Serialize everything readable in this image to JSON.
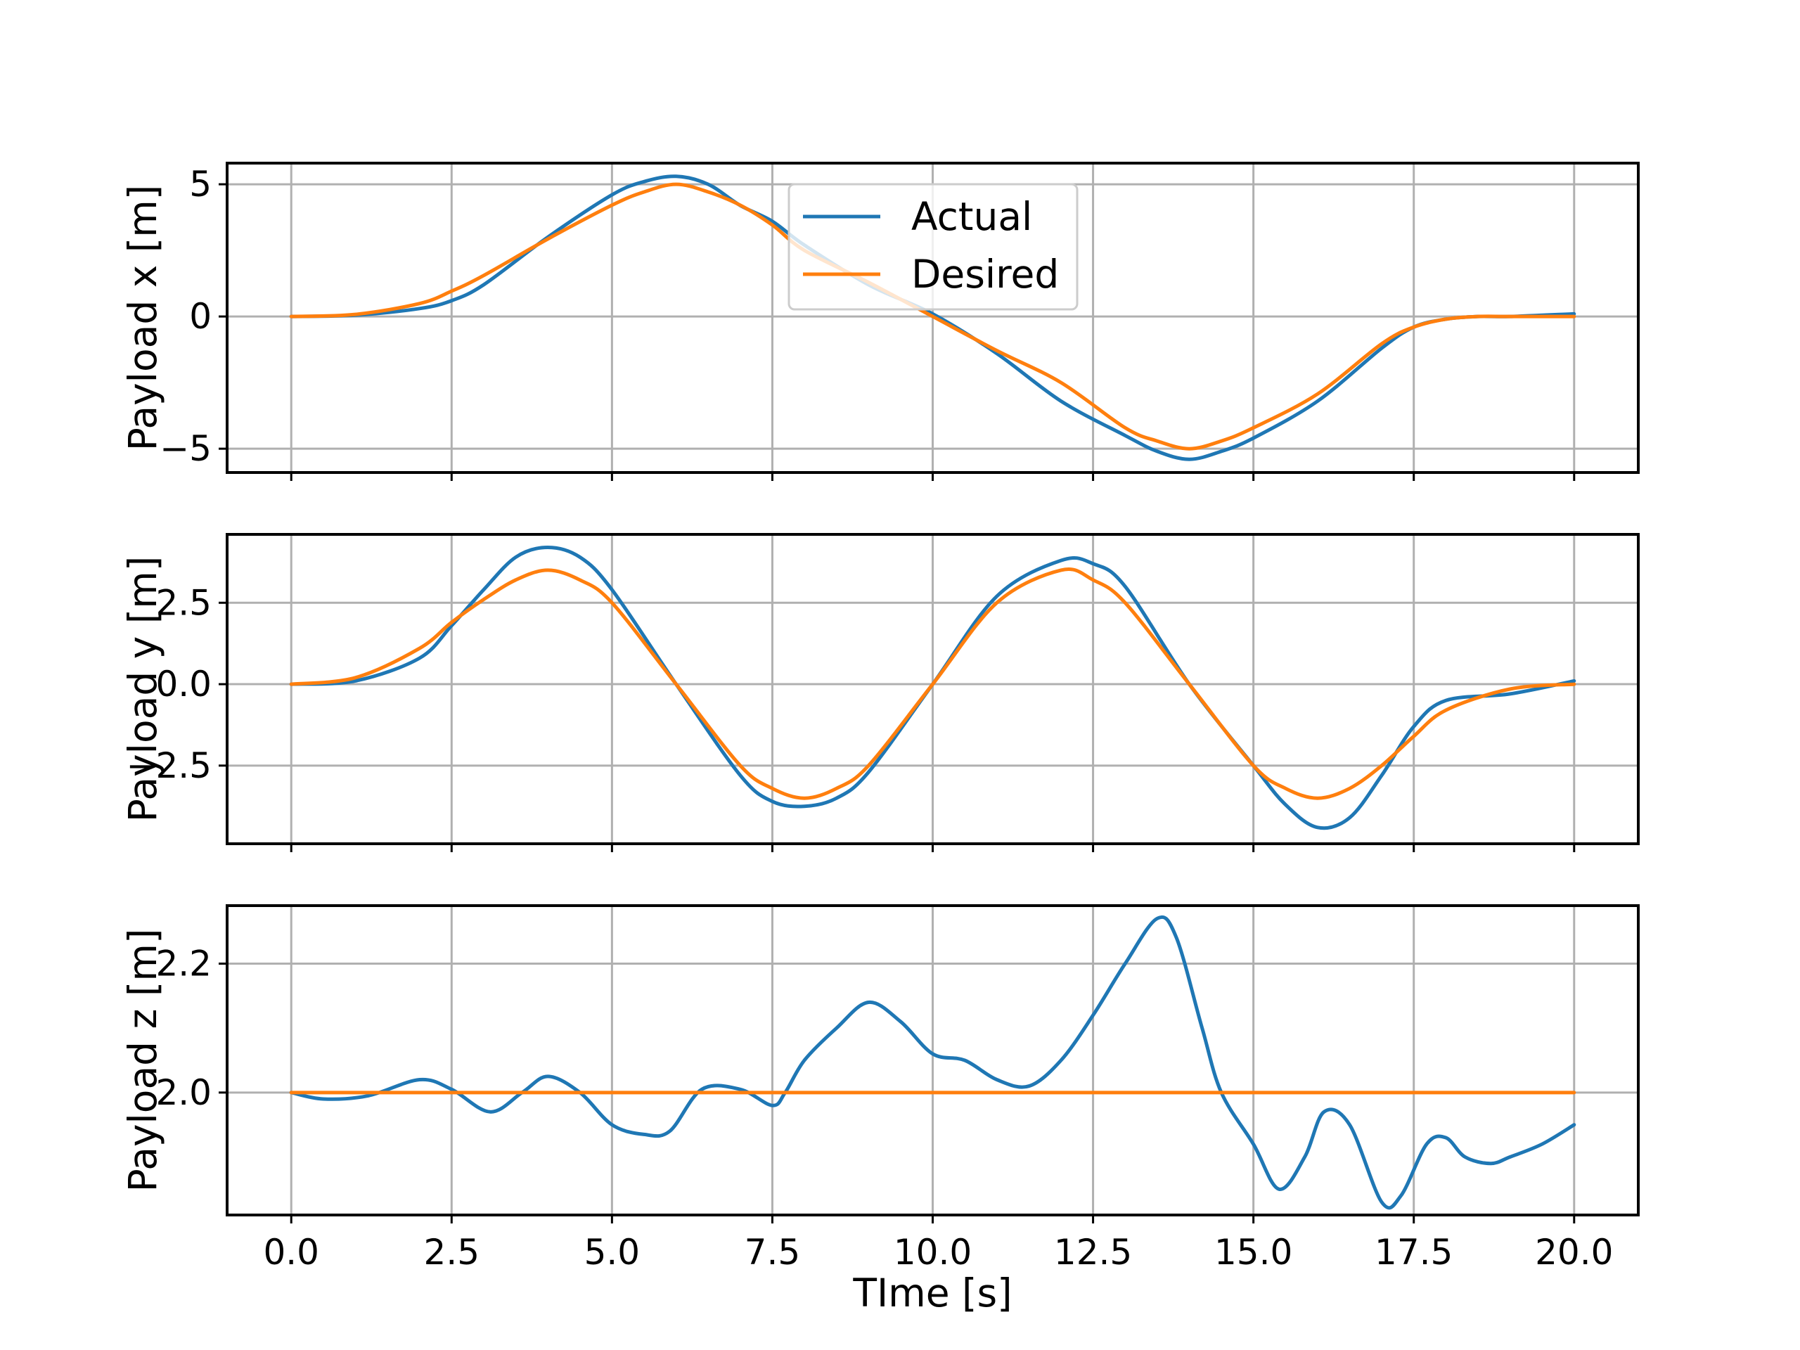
{
  "colors": {
    "actual": "#1f77b4",
    "desired": "#ff7f0e",
    "grid": "#b0b0b0",
    "frame": "#000000",
    "background": "#ffffff"
  },
  "legend": {
    "placement": "top-center, over first subplot",
    "entries": [
      "Actual",
      "Desired"
    ]
  },
  "chart_data": [
    {
      "type": "line",
      "ylabel": "Payload x [m]",
      "xlabel": "",
      "xlim": [
        -1,
        21
      ],
      "ylim": [
        -5.9,
        5.8
      ],
      "xticks": [
        0,
        2.5,
        5,
        7.5,
        10,
        12.5,
        15,
        17.5,
        20
      ],
      "xtick_labels_visible": false,
      "yticks": [
        5,
        0,
        -5
      ],
      "ytick_labels": [
        "5",
        "0",
        "−5"
      ],
      "grid": true,
      "series": [
        {
          "name": "Actual",
          "x": [
            0,
            1,
            2,
            2.5,
            3,
            4,
            5,
            5.5,
            6,
            6.5,
            7,
            7.5,
            8,
            9,
            10,
            11,
            12,
            13,
            13.5,
            14,
            14.5,
            15,
            16,
            17,
            17.5,
            18,
            18.5,
            19,
            20
          ],
          "y": [
            0,
            0.05,
            0.3,
            0.6,
            1.2,
            3.0,
            4.6,
            5.1,
            5.3,
            5.0,
            4.2,
            3.6,
            2.7,
            1.2,
            0.1,
            -1.4,
            -3.2,
            -4.5,
            -5.1,
            -5.4,
            -5.1,
            -4.6,
            -3.2,
            -1.2,
            -0.4,
            -0.1,
            0.0,
            0.0,
            0.1
          ]
        },
        {
          "name": "Desired",
          "x": [
            0,
            1,
            2,
            2.5,
            3,
            4,
            5,
            5.5,
            6,
            6.5,
            7,
            7.5,
            8,
            9,
            10,
            11,
            12,
            13,
            13.5,
            14,
            14.5,
            15,
            16,
            17,
            17.5,
            18,
            18.5,
            19,
            20
          ],
          "y": [
            0,
            0.08,
            0.49,
            0.96,
            1.55,
            2.93,
            4.21,
            4.71,
            5.0,
            4.71,
            4.21,
            3.46,
            2.5,
            1.29,
            0,
            -1.29,
            -2.5,
            -4.21,
            -4.71,
            -5.0,
            -4.71,
            -4.21,
            -2.93,
            -1.03,
            -0.4,
            -0.1,
            0.0,
            0.0,
            0.0
          ]
        }
      ]
    },
    {
      "type": "line",
      "ylabel": "Payload y [m]",
      "xlabel": "",
      "xlim": [
        -1,
        21
      ],
      "ylim": [
        -4.9,
        4.6
      ],
      "xticks": [
        0,
        2.5,
        5,
        7.5,
        10,
        12.5,
        15,
        17.5,
        20
      ],
      "xtick_labels_visible": false,
      "yticks": [
        2.5,
        0,
        -2.5
      ],
      "ytick_labels": [
        "2.5",
        "0.0",
        "−2.5"
      ],
      "grid": true,
      "series": [
        {
          "name": "Actual",
          "x": [
            0,
            1,
            2,
            2.5,
            3,
            3.5,
            4,
            4.5,
            5,
            6,
            7,
            7.5,
            8,
            8.5,
            9,
            10,
            11,
            12,
            12.5,
            13,
            14,
            15,
            15.5,
            16,
            16.5,
            17,
            17.5,
            18,
            19,
            20
          ],
          "y": [
            0,
            0.1,
            0.8,
            1.8,
            2.9,
            3.9,
            4.2,
            3.9,
            2.9,
            0.0,
            -2.8,
            -3.6,
            -3.75,
            -3.5,
            -2.7,
            0.0,
            2.7,
            3.8,
            3.7,
            3.0,
            0.0,
            -2.5,
            -3.7,
            -4.4,
            -4.1,
            -2.8,
            -1.3,
            -0.5,
            -0.3,
            0.1
          ]
        },
        {
          "name": "Desired",
          "x": [
            0,
            1,
            2,
            2.5,
            3,
            3.5,
            4,
            4.5,
            5,
            6,
            7,
            7.5,
            8,
            8.5,
            9,
            10,
            11,
            12,
            12.5,
            13,
            14,
            15,
            15.5,
            16,
            16.5,
            17,
            17.5,
            18,
            19,
            20
          ],
          "y": [
            0,
            0.2,
            1.1,
            1.9,
            2.6,
            3.2,
            3.5,
            3.2,
            2.5,
            0.0,
            -2.5,
            -3.2,
            -3.5,
            -3.2,
            -2.5,
            0.0,
            2.5,
            3.5,
            3.2,
            2.5,
            0.0,
            -2.5,
            -3.2,
            -3.5,
            -3.2,
            -2.5,
            -1.6,
            -0.8,
            -0.15,
            0.0
          ]
        }
      ]
    },
    {
      "type": "line",
      "ylabel": "Payload z [m]",
      "xlabel": "TIme [s]",
      "xlim": [
        -1,
        21
      ],
      "ylim": [
        1.81,
        2.29
      ],
      "xticks": [
        0,
        2.5,
        5,
        7.5,
        10,
        12.5,
        15,
        17.5,
        20
      ],
      "xtick_labels": [
        "0.0",
        "2.5",
        "5.0",
        "7.5",
        "10.0",
        "12.5",
        "15.0",
        "17.5",
        "20.0"
      ],
      "xtick_labels_visible": true,
      "yticks": [
        2.2,
        2.0
      ],
      "ytick_labels": [
        "2.2",
        "2.0"
      ],
      "grid": true,
      "series": [
        {
          "name": "Actual",
          "x": [
            0,
            0.5,
            1.2,
            2,
            2.5,
            3.1,
            3.6,
            4,
            4.5,
            5,
            5.5,
            5.9,
            6.4,
            7,
            7.5,
            7.7,
            8,
            8.5,
            9,
            9.5,
            10,
            10.5,
            11,
            11.5,
            12,
            12.5,
            13,
            13.5,
            13.8,
            14.2,
            14.5,
            15,
            15.4,
            15.8,
            16.1,
            16.5,
            17,
            17.3,
            17.7,
            18,
            18.3,
            18.7,
            19,
            19.5,
            20
          ],
          "y": [
            2.0,
            1.99,
            1.995,
            2.02,
            2.005,
            1.97,
            2.0,
            2.025,
            2.0,
            1.95,
            1.935,
            1.94,
            2.005,
            2.005,
            1.98,
            2.0,
            2.05,
            2.1,
            2.14,
            2.11,
            2.06,
            2.05,
            2.02,
            2.01,
            2.05,
            2.12,
            2.2,
            2.27,
            2.24,
            2.1,
            2.0,
            1.92,
            1.85,
            1.9,
            1.97,
            1.95,
            1.83,
            1.84,
            1.92,
            1.93,
            1.9,
            1.89,
            1.9,
            1.92,
            1.95
          ]
        },
        {
          "name": "Desired",
          "x": [
            0,
            20
          ],
          "y": [
            2.0,
            2.0
          ]
        }
      ]
    }
  ]
}
